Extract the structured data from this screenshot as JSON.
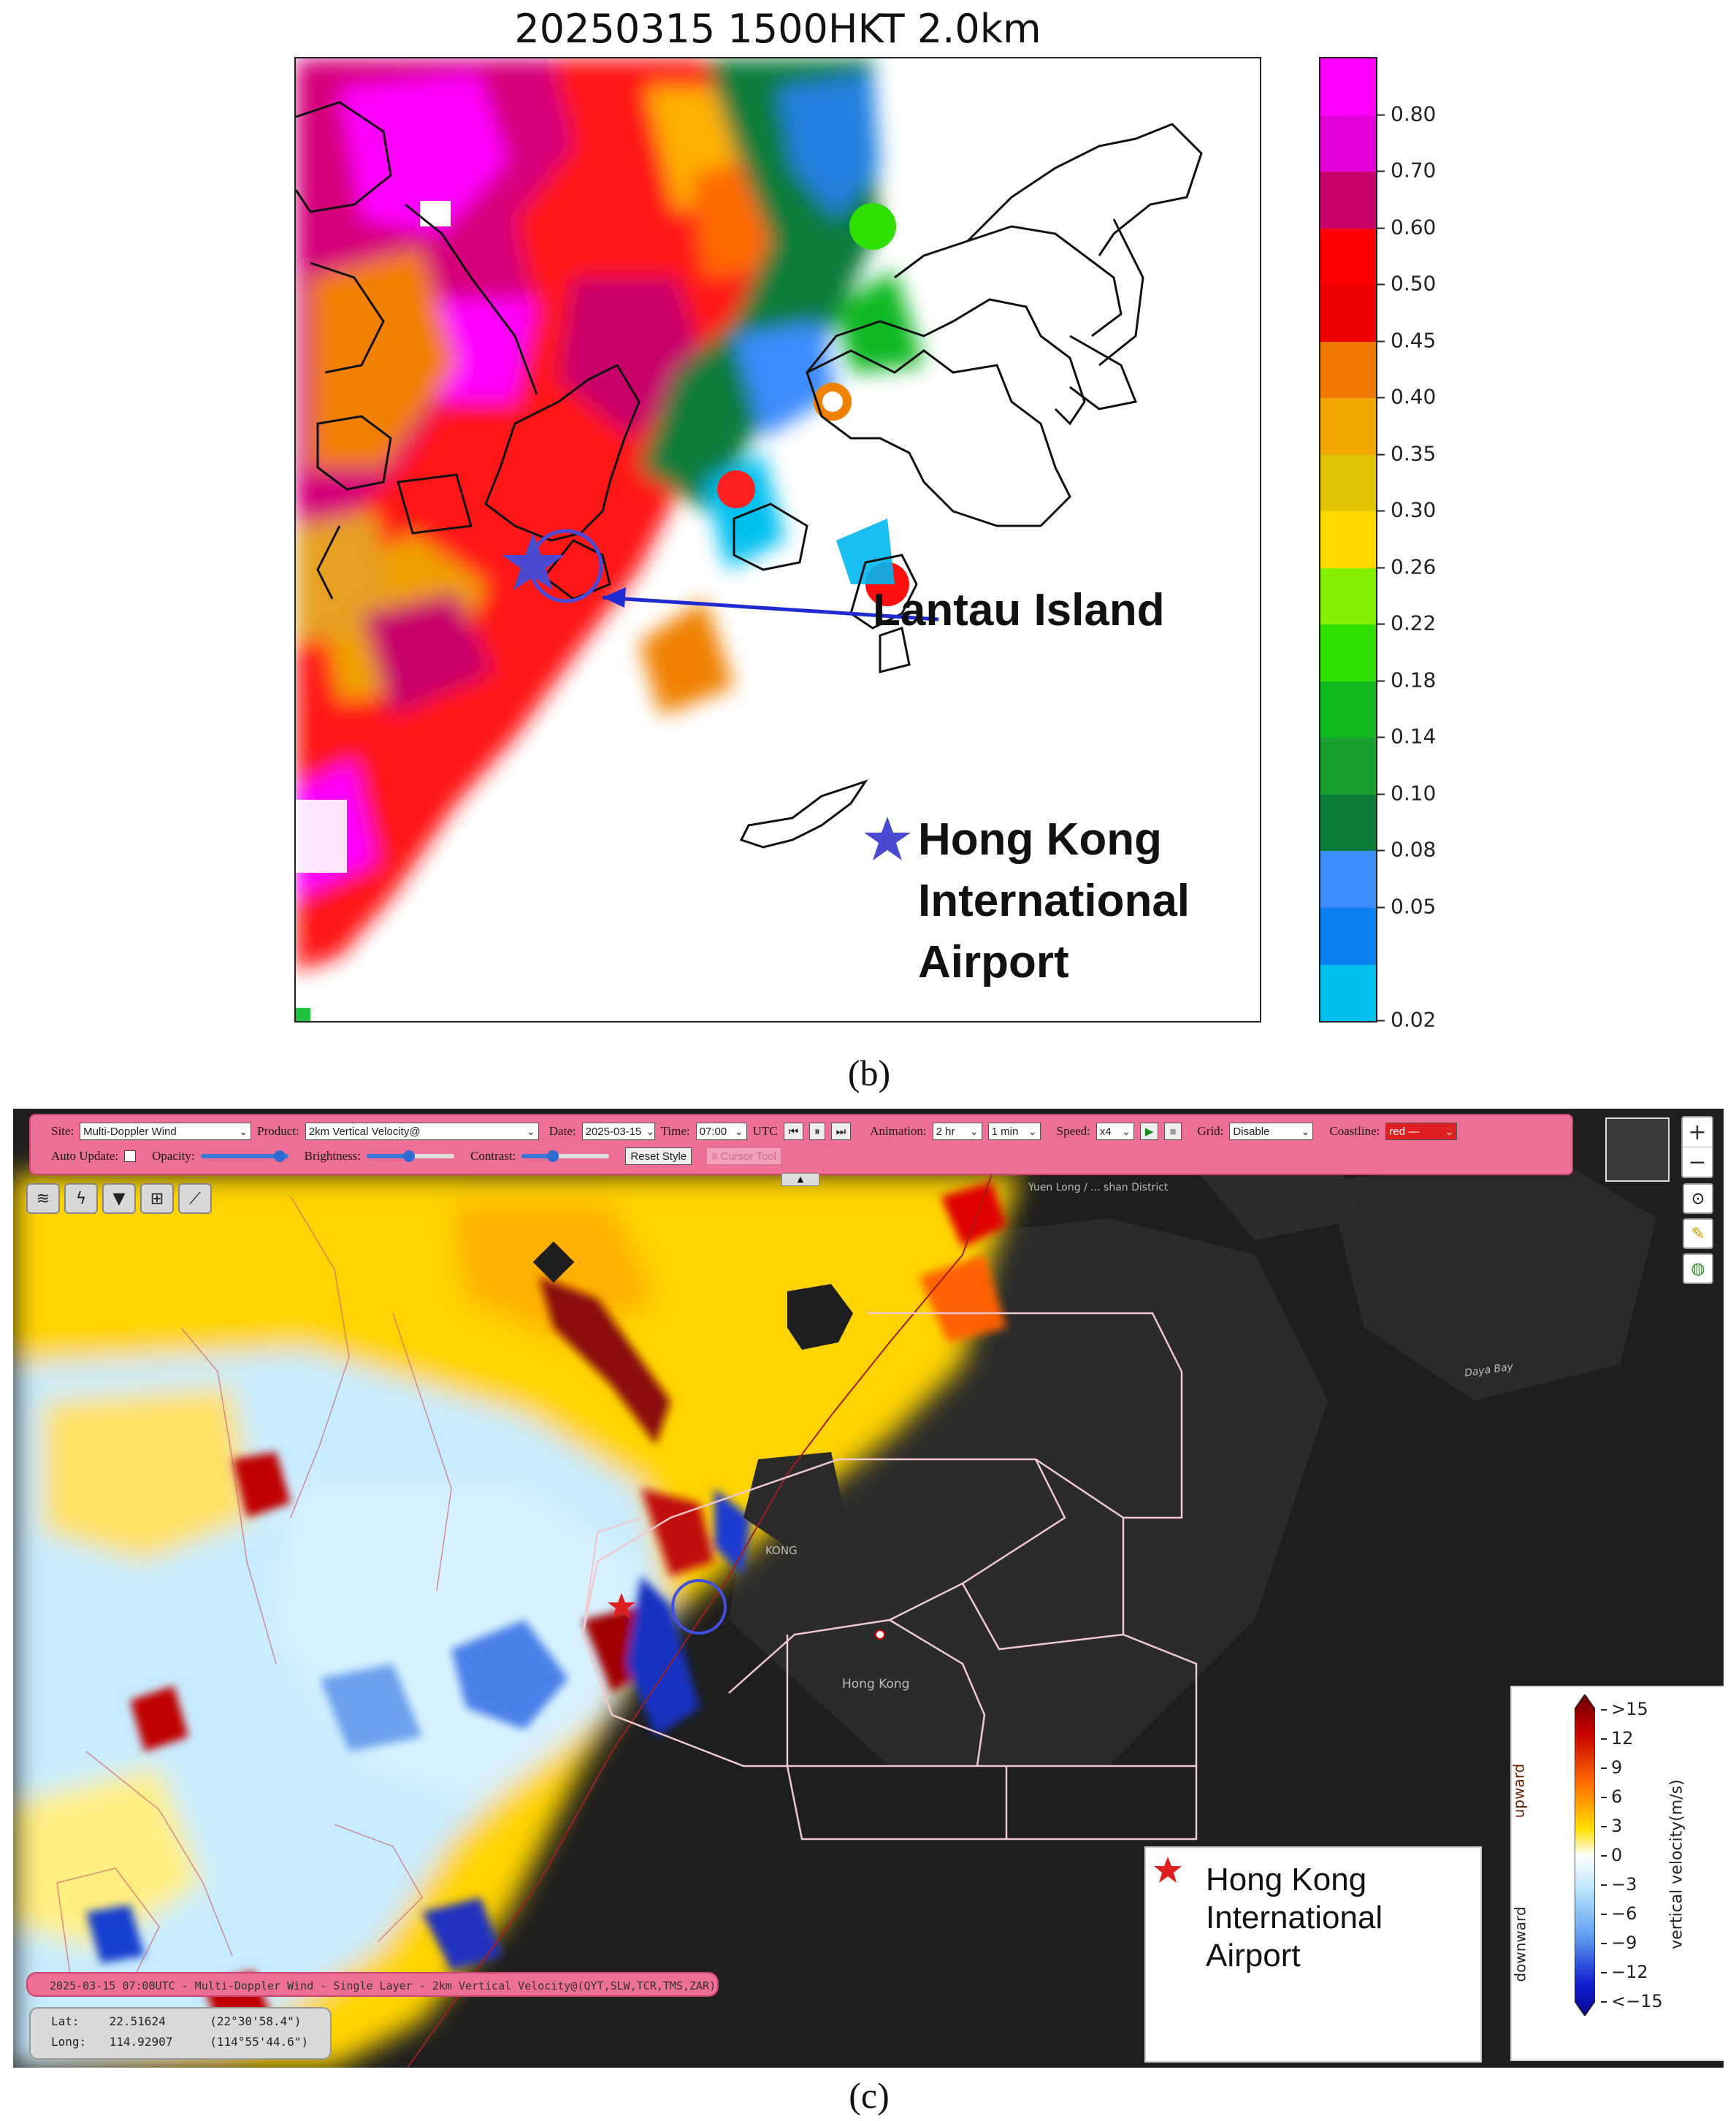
{
  "panel_b": {
    "title": "20250315 1500HKT 2.0km",
    "colorbar_ticks": [
      "0.80",
      "0.70",
      "0.60",
      "0.50",
      "0.45",
      "0.40",
      "0.35",
      "0.30",
      "0.26",
      "0.22",
      "0.18",
      "0.14",
      "0.10",
      "0.08",
      "0.05",
      "0.02"
    ],
    "colorbar_colors": [
      "#ff00ff",
      "#e300d8",
      "#c8006b",
      "#ff0000",
      "#ef0000",
      "#f07800",
      "#f0a800",
      "#e0c400",
      "#ffd800",
      "#84f000",
      "#30e000",
      "#10b820",
      "#18a030",
      "#0c7c3a",
      "#3c8cff",
      "#0c80f0",
      "#00c0f0"
    ],
    "lantau_label": "Lantau Island",
    "airport_label_lines": [
      "Hong Kong",
      "International",
      "Airport"
    ],
    "panel_label": "(b)"
  },
  "panel_c": {
    "toolbar": {
      "site_label": "Site:",
      "site_value": "Multi-Doppler Wind",
      "product_label": "Product:",
      "product_value": "2km Vertical Velocity@",
      "date_label": "Date:",
      "date_value": "2025-03-15",
      "time_label": "Time:",
      "time_value": "07:00",
      "utc_label": "UTC",
      "animation_label": "Animation:",
      "animation_value": "2 hr",
      "animation_step": "1 min",
      "speed_label": "Speed:",
      "speed_value": "x4",
      "grid_label": "Grid:",
      "grid_value": "Disable",
      "coastline_label": "Coastline:",
      "coastline_value": "red —",
      "auto_update_label": "Auto Update:",
      "opacity_label": "Opacity:",
      "brightness_label": "Brightness:",
      "contrast_label": "Contrast:",
      "reset_label": "Reset Style",
      "cursor_tool_label": "# Cursor Tool"
    },
    "place_labels": {
      "district": "Yuen Long / ... shan District",
      "kong": "KONG",
      "hong_kong": "Hong Kong",
      "daya_bay": "Daya Bay"
    },
    "status_text": "2025-03-15 07:00UTC - Multi-Doppler Wind - Single Layer - 2km Vertical Velocity@(QYT,SLW,TCR,TMS,ZAR)",
    "coords": {
      "lat_label": "Lat:",
      "lat_value": "22.51624",
      "lat_dms": "(22°30'58.4\")",
      "long_label": "Long:",
      "long_value": "114.92907",
      "long_dms": "(114°55'44.6\")"
    },
    "legend_lines": [
      "Hong Kong",
      "International",
      "Airport"
    ],
    "colorbar_ticks": [
      ">15",
      "12",
      "9",
      "6",
      "3",
      "0",
      "−3",
      "−6",
      "−9",
      "−12",
      "<−15"
    ],
    "colorbar_axis_label": "vertical velocity(m/s)",
    "upward_label": "upward",
    "downward_label": "downward",
    "panel_label": "(c)"
  }
}
